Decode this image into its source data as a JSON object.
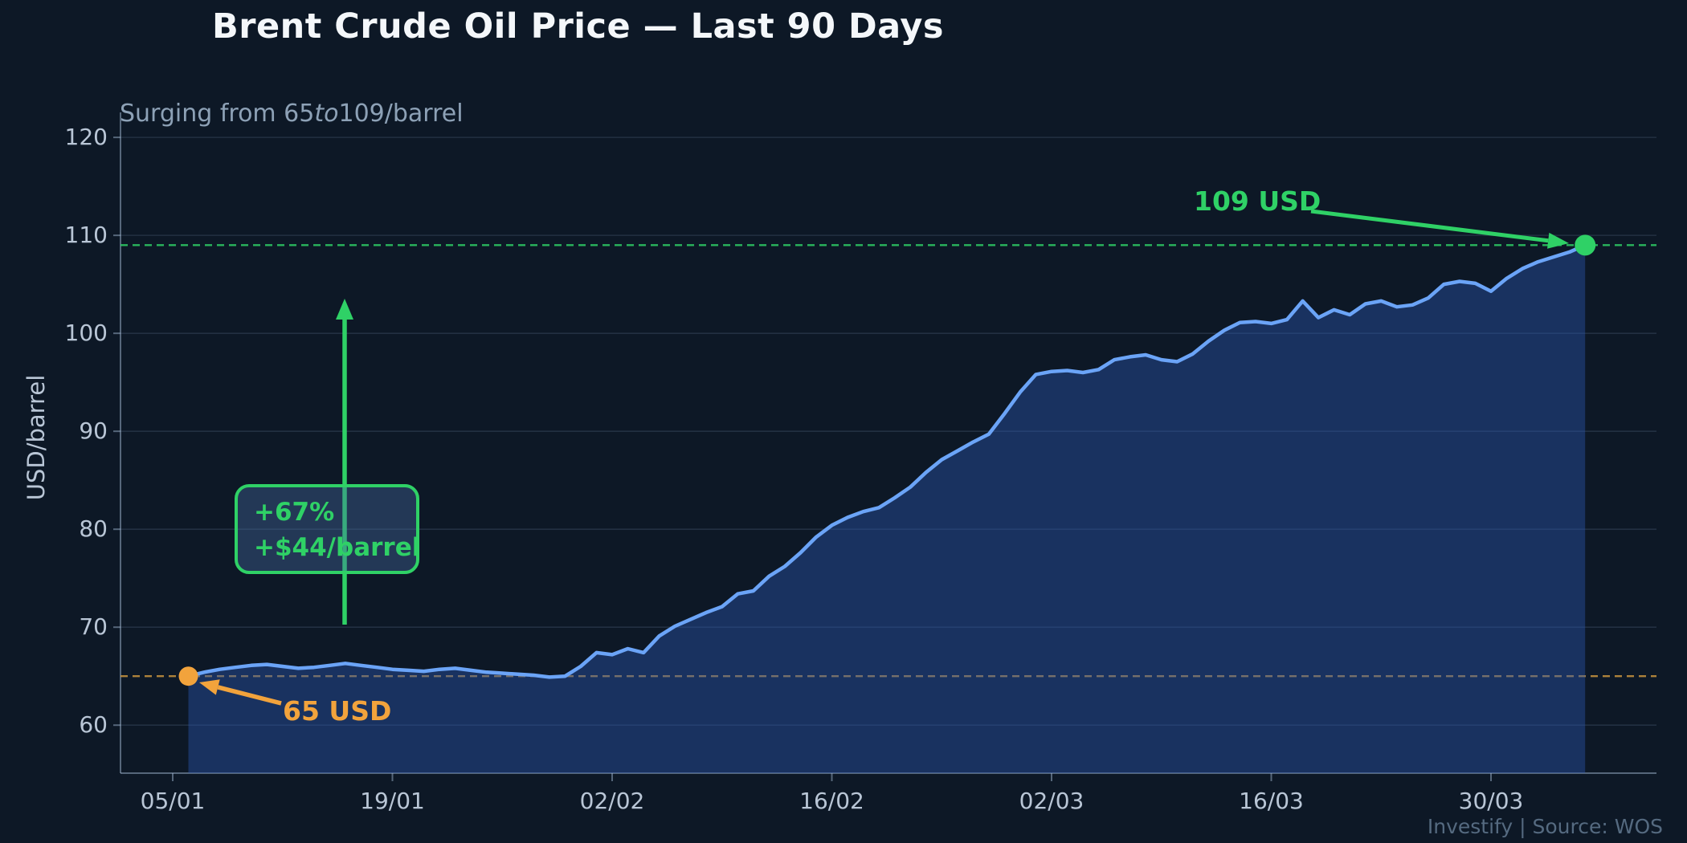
{
  "header": {
    "title": "Brent Crude Oil Price — Last 90 Days"
  },
  "subtitle": {
    "pre": "Surging from 65",
    "italic": "to",
    "post": "109/barrel"
  },
  "ylabel": "USD/barrel",
  "annotations": {
    "start_label": "65 USD",
    "end_label": "109 USD",
    "gain_line1": "+67%",
    "gain_line2": "+$44/barrel"
  },
  "footer": {
    "text": "Investify  |  Source: WOS"
  },
  "chart_data": {
    "type": "area",
    "title": "Brent Crude Oil Price — Last 90 Days",
    "subtitle": "Surging from 65to109/barrel",
    "xlabel": "",
    "ylabel": "USD/barrel",
    "ylim": [
      55.1,
      122.55
    ],
    "grid": "horizontal-only",
    "x_tick_labels": [
      "05/01",
      "19/01",
      "02/02",
      "16/02",
      "02/03",
      "16/03",
      "30/03"
    ],
    "x_tick_days": [
      0,
      14,
      28,
      42,
      56,
      70,
      84
    ],
    "series_day_offset": 1,
    "y_ticks": [
      60,
      70,
      80,
      90,
      100,
      110,
      120
    ],
    "reference_lines": [
      {
        "value": 65,
        "color": "#c9953e",
        "style": "dashed",
        "label": "65 USD"
      },
      {
        "value": 109,
        "color": "#2fd166",
        "style": "dashed",
        "label": "109 USD"
      }
    ],
    "start_value": 65,
    "end_value": 109,
    "change_percent": "+67%",
    "change_absolute": "+$44/barrel",
    "values": [
      65.0,
      65.4,
      65.7,
      65.9,
      66.1,
      66.2,
      66.0,
      65.8,
      65.9,
      66.1,
      66.3,
      66.1,
      65.9,
      65.7,
      65.6,
      65.5,
      65.7,
      65.8,
      65.6,
      65.4,
      65.3,
      65.2,
      65.1,
      64.9,
      65.0,
      66.0,
      67.4,
      67.2,
      67.8,
      67.4,
      69.1,
      70.1,
      70.8,
      71.5,
      72.1,
      73.4,
      73.7,
      75.2,
      76.2,
      77.6,
      79.2,
      80.4,
      81.2,
      81.8,
      82.2,
      83.2,
      84.3,
      85.8,
      87.1,
      88.0,
      88.9,
      89.7,
      91.8,
      94.0,
      95.8,
      96.1,
      96.2,
      96.0,
      96.3,
      97.3,
      97.6,
      97.8,
      97.3,
      97.1,
      97.9,
      99.2,
      100.3,
      101.1,
      101.2,
      101.0,
      101.4,
      103.3,
      101.6,
      102.4,
      101.9,
      103.0,
      103.3,
      102.7,
      102.9,
      103.6,
      105.0,
      105.3,
      105.1,
      104.3,
      105.6,
      106.6,
      107.3,
      107.8,
      108.3,
      109.0
    ],
    "colors": {
      "background": "#0d1826",
      "line": "#6ba4f7",
      "fill": "rgba(43,88,176,0.42)",
      "start_accent": "#f2a33c",
      "end_accent": "#2fd166",
      "tick_text": "#b9c6d6",
      "grid": "rgba(140,170,210,0.17)",
      "spine": "rgba(160,182,208,0.5)"
    }
  }
}
